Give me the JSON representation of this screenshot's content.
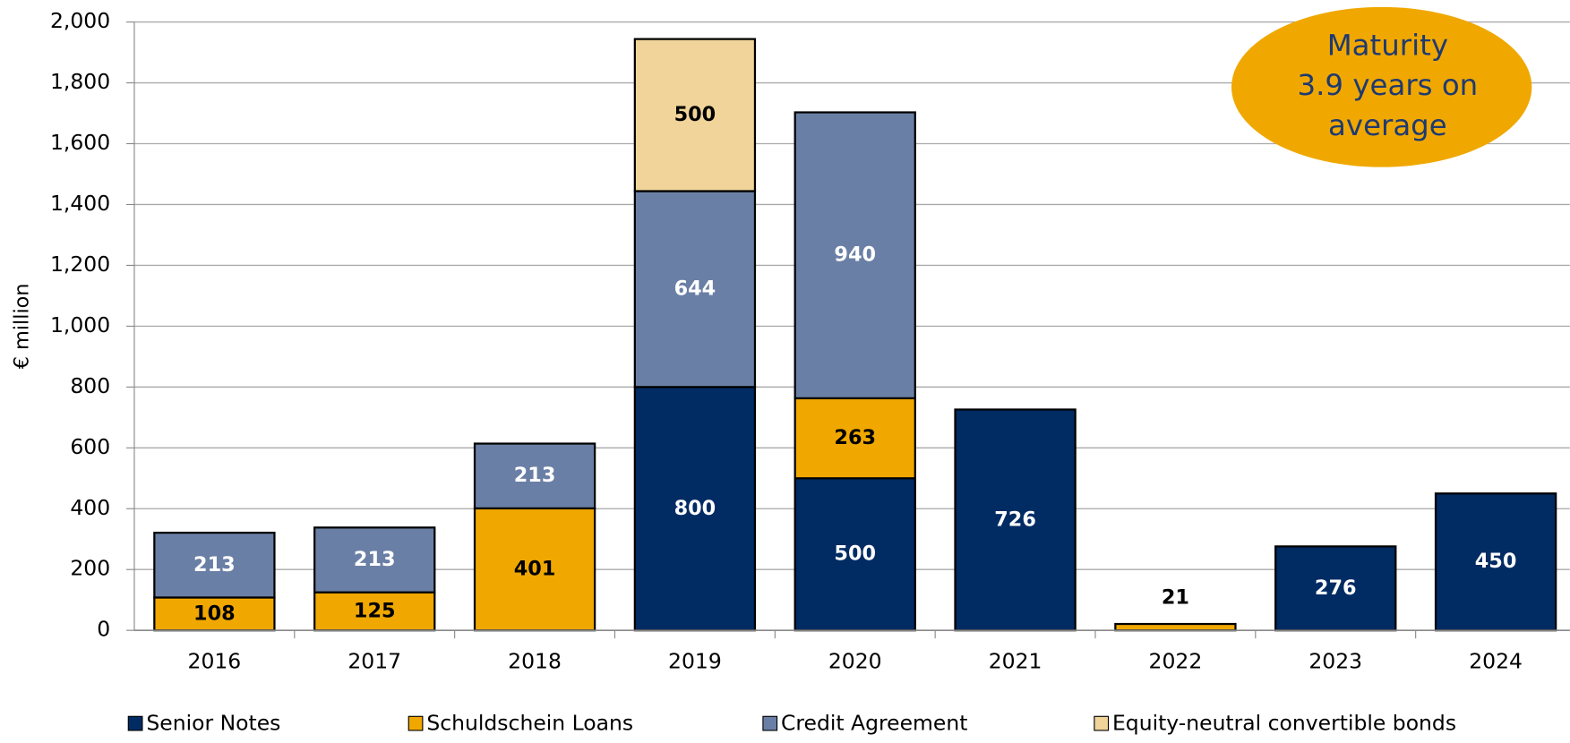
{
  "chart_data": {
    "type": "stacked_bar",
    "y_label": "€ million",
    "annotation": [
      "Maturity",
      "3.9 years on",
      "average"
    ],
    "categories": [
      "2016",
      "2017",
      "2018",
      "2019",
      "2020",
      "2021",
      "2022",
      "2023",
      "2024"
    ],
    "series": [
      {
        "name": "Senior Notes",
        "color": "#012b63",
        "label_color": "#ffffff",
        "values": [
          null,
          null,
          null,
          800,
          500,
          726,
          null,
          276,
          450
        ]
      },
      {
        "name": "Schuldschein Loans",
        "color": "#f0a800",
        "label_color": "#000000",
        "values": [
          108,
          125,
          401,
          null,
          263,
          null,
          21,
          null,
          null
        ]
      },
      {
        "name": "Credit Agreement",
        "color": "#6a7fa5",
        "label_color": "#ffffff",
        "values": [
          213,
          213,
          213,
          644,
          940,
          null,
          null,
          null,
          null
        ]
      },
      {
        "name": "Equity-neutral convertible bonds",
        "color": "#f0d49a",
        "label_color": "#000000",
        "values": [
          null,
          null,
          null,
          500,
          null,
          null,
          null,
          null,
          null
        ]
      }
    ],
    "ylim": [
      0,
      2000
    ],
    "yticks": [
      0,
      200,
      400,
      600,
      800,
      {
        "value": 1000,
        "label": "1,000"
      },
      {
        "value": 1200,
        "label": "1,200"
      },
      {
        "value": 1400,
        "label": "1,400"
      },
      {
        "value": 1600,
        "label": "1,600"
      },
      {
        "value": 1800,
        "label": "1,800"
      },
      {
        "value": 2000,
        "label": "2,000"
      }
    ],
    "grid": true
  }
}
